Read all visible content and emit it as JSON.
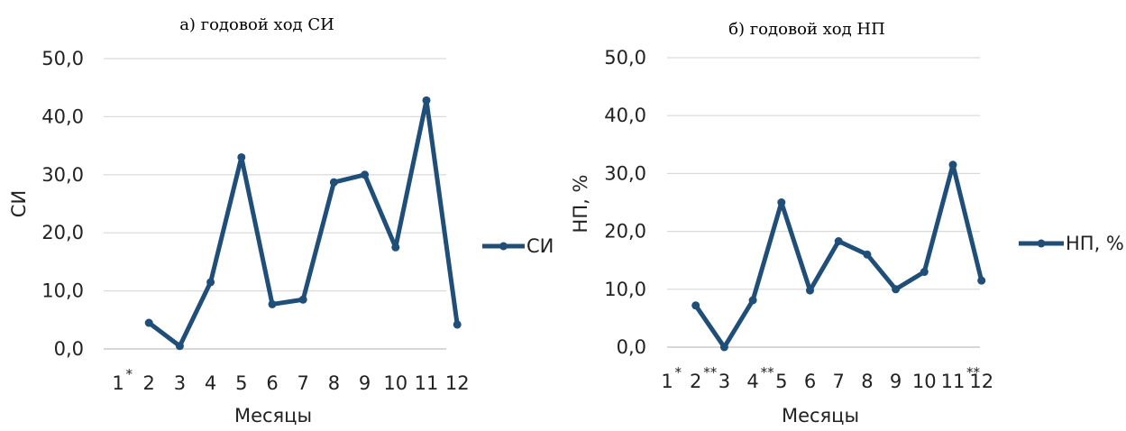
{
  "chart_data": [
    {
      "type": "line",
      "title": "а) годовой ход СИ",
      "xlabel": "Месяцы",
      "ylabel": "СИ",
      "ylim": [
        0,
        50
      ],
      "yticks": [
        "0,0",
        "10,0",
        "20,0",
        "30,0",
        "40,0",
        "50,0"
      ],
      "categories": [
        "1",
        "2",
        "3",
        "4",
        "5",
        "6",
        "7",
        "8",
        "9",
        "10",
        "11",
        "12"
      ],
      "category_marks": [
        "*",
        "",
        "",
        "",
        "",
        "",
        "",
        "",
        "",
        "",
        "",
        ""
      ],
      "grid": true,
      "legend_position": "right",
      "color": "#1f4e79",
      "series": [
        {
          "name": "СИ",
          "values": [
            null,
            4.5,
            0.5,
            11.5,
            33.0,
            7.7,
            8.5,
            28.7,
            30.0,
            17.5,
            42.8,
            4.2
          ]
        }
      ]
    },
    {
      "type": "line",
      "title": "б) годовой ход НП",
      "xlabel": "Месяцы",
      "ylabel": "НП, %",
      "ylim": [
        0,
        50
      ],
      "yticks": [
        "0,0",
        "10,0",
        "20,0",
        "30,0",
        "40,0",
        "50,0"
      ],
      "categories": [
        "1",
        "2",
        "3",
        "4",
        "5",
        "6",
        "7",
        "8",
        "9",
        "10",
        "11",
        "12"
      ],
      "category_marks": [
        "*",
        "**",
        "",
        "**",
        "",
        "",
        "",
        "",
        "",
        "",
        "**",
        ""
      ],
      "grid": true,
      "legend_position": "right",
      "color": "#1f4e79",
      "series": [
        {
          "name": "НП, %",
          "values": [
            null,
            7.2,
            0.0,
            8.1,
            25.0,
            9.8,
            18.3,
            16.0,
            10.0,
            13.0,
            31.5,
            11.5
          ]
        }
      ]
    }
  ]
}
